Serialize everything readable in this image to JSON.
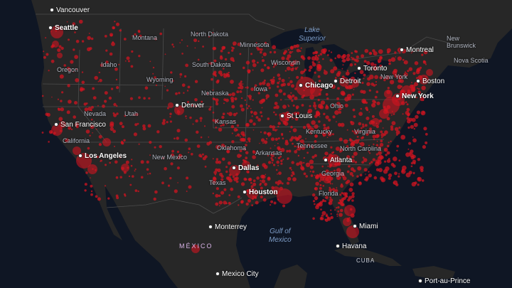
{
  "colors": {
    "water": "#0f1624",
    "land": "#272727",
    "border": "#4a4a4a",
    "bubble": "#d11420"
  },
  "cities": {
    "vancouver": "Vancouver",
    "seattle": "Seattle",
    "san_francisco": "San Francisco",
    "los_angeles": "Los Angeles",
    "denver": "Denver",
    "dallas": "Dallas",
    "houston": "Houston",
    "chicago": "Chicago",
    "detroit": "Detroit",
    "toronto": "Toronto",
    "montreal": "Montreal",
    "boston": "Boston",
    "new_york": "New York",
    "st_louis": "St Louis",
    "atlanta": "Atlanta",
    "miami": "Miami",
    "havana": "Havana",
    "monterrey": "Monterrey",
    "mexico_city": "Mexico City",
    "port_au_prince": "Port-au-Prince"
  },
  "regions": {
    "montana": "Montana",
    "north_dakota": "North Dakota",
    "minnesota": "Minnesota",
    "south_dakota": "South Dakota",
    "wisconsin": "Wisconsin",
    "new_york_state": "New York",
    "oregon": "Oregon",
    "idaho": "Idaho",
    "wyoming": "Wyoming",
    "nebraska": "Nebraska",
    "iowa": "Iowa",
    "ohio": "Ohio",
    "nevada": "Nevada",
    "utah": "Utah",
    "california": "California",
    "kansas": "Kansas",
    "kentucky": "Kentucky",
    "virginia": "Virginia",
    "new_mexico": "New Mexico",
    "oklahoma": "Oklahoma",
    "arkansas": "Arkansas",
    "tennessee": "Tennessee",
    "north_carolina": "North Carolina",
    "georgia": "Georgia",
    "texas": "Texas",
    "florida": "Florida",
    "new_brunswick": "New\nBrunswick",
    "nova_scotia": "Nova Scotia",
    "mexico": "MÉXICO",
    "cuba": "CUBA"
  },
  "water": {
    "lake_superior": "Lake\nSuperior",
    "gulf_of_mexico": "Gulf of\nMexico"
  }
}
